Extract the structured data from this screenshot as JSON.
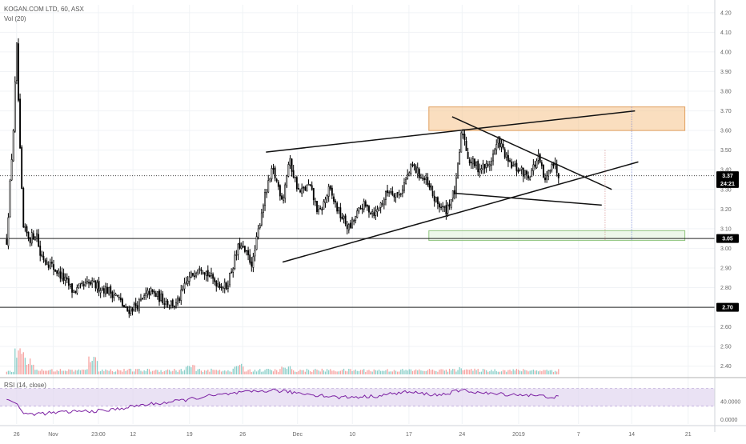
{
  "header": {
    "symbol_line": "KOGAN.COM LTD, 60, ASX",
    "volume_label": "Vol (20)",
    "rsi_label": "RSI (14, close)"
  },
  "price_axis": {
    "ticks": [
      "4.20",
      "4.10",
      "4.00",
      "3.90",
      "3.80",
      "3.70",
      "3.60",
      "3.50",
      "3.40",
      "3.30",
      "3.20",
      "3.10",
      "3.00",
      "2.90",
      "2.80",
      "2.70",
      "2.60",
      "2.50",
      "2.40"
    ],
    "tick_values": [
      4.2,
      4.1,
      4.0,
      3.9,
      3.8,
      3.7,
      3.6,
      3.5,
      3.4,
      3.3,
      3.2,
      3.1,
      3.0,
      2.9,
      2.8,
      2.7,
      2.6,
      2.5,
      2.4
    ],
    "range": [
      2.35,
      4.24
    ]
  },
  "rsi_axis": {
    "ticks": [
      "40.0000",
      "0.0000"
    ],
    "tick_values": [
      40,
      0
    ],
    "range": [
      -10,
      80
    ],
    "band": [
      30,
      70
    ]
  },
  "time_axis": {
    "labels": [
      "26",
      "Nov",
      "23:00",
      "12",
      "19",
      "26",
      "Dec",
      "10",
      "17",
      "24",
      "2019",
      "7",
      "14",
      "21"
    ],
    "positions": [
      0.03,
      0.14,
      0.276,
      0.38,
      0.55,
      0.71,
      0.875,
      1.04,
      1.21,
      1.37,
      1.54,
      1.72,
      1.88,
      2.05
    ]
  },
  "badges": [
    {
      "text": "3.37",
      "value": 3.37,
      "color": "#000000"
    },
    {
      "text": "24:21",
      "value": 3.33,
      "color": "#000000"
    },
    {
      "text": "3.05",
      "value": 3.05,
      "color": "#000000"
    },
    {
      "text": "2.70",
      "value": 2.7,
      "color": "#000000"
    }
  ],
  "horizontal_lines": [
    {
      "value": 3.05,
      "style": "solid"
    },
    {
      "value": 2.7,
      "style": "solid"
    },
    {
      "value": 3.37,
      "style": "dotted"
    }
  ],
  "zones": [
    {
      "x0": 1.27,
      "x1": 2.04,
      "y0": 3.6,
      "y1": 3.72,
      "fill": "#f5c28a",
      "stroke": "#e0a060"
    },
    {
      "x0": 1.27,
      "x1": 2.04,
      "y0": 3.04,
      "y1": 3.09,
      "fill": "#dff0d8",
      "stroke": "#8fc47e"
    }
  ],
  "trend_lines": [
    {
      "x1": 0.78,
      "y1": 3.49,
      "x2": 1.89,
      "y2": 3.7
    },
    {
      "x1": 0.83,
      "y1": 2.93,
      "x2": 1.9,
      "y2": 3.44
    },
    {
      "x1": 1.34,
      "y1": 3.67,
      "x2": 1.82,
      "y2": 3.3
    },
    {
      "x1": 1.35,
      "y1": 3.28,
      "x2": 1.79,
      "y2": 3.22
    }
  ],
  "accent_colors": {
    "up": "#26a69a",
    "down": "#ef5350",
    "rsi": "#7b1fa2",
    "rsi_band": "#e1d5f0"
  },
  "chart_data": {
    "type": "candlestick",
    "instrument": "KOGAN.COM LTD, 60, ASX",
    "x_unit": "weeks from first bar",
    "keypoints": [
      [
        0.0,
        3.04
      ],
      [
        0.02,
        3.6
      ],
      [
        0.03,
        4.04
      ],
      [
        0.04,
        3.5
      ],
      [
        0.05,
        3.1
      ],
      [
        0.07,
        3.05
      ],
      [
        0.09,
        3.08
      ],
      [
        0.1,
        2.97
      ],
      [
        0.13,
        2.92
      ],
      [
        0.17,
        2.85
      ],
      [
        0.2,
        2.78
      ],
      [
        0.25,
        2.82
      ],
      [
        0.3,
        2.79
      ],
      [
        0.33,
        2.76
      ],
      [
        0.36,
        2.68
      ],
      [
        0.4,
        2.72
      ],
      [
        0.43,
        2.78
      ],
      [
        0.47,
        2.74
      ],
      [
        0.51,
        2.71
      ],
      [
        0.54,
        2.82
      ],
      [
        0.58,
        2.92
      ],
      [
        0.62,
        2.84
      ],
      [
        0.66,
        2.8
      ],
      [
        0.7,
        3.02
      ],
      [
        0.74,
        2.92
      ],
      [
        0.77,
        3.22
      ],
      [
        0.8,
        3.4
      ],
      [
        0.83,
        3.25
      ],
      [
        0.85,
        3.45
      ],
      [
        0.88,
        3.28
      ],
      [
        0.91,
        3.32
      ],
      [
        0.94,
        3.17
      ],
      [
        0.97,
        3.3
      ],
      [
        1.0,
        3.18
      ],
      [
        1.03,
        3.1
      ],
      [
        1.07,
        3.22
      ],
      [
        1.11,
        3.18
      ],
      [
        1.15,
        3.3
      ],
      [
        1.18,
        3.27
      ],
      [
        1.22,
        3.42
      ],
      [
        1.26,
        3.34
      ],
      [
        1.29,
        3.24
      ],
      [
        1.32,
        3.19
      ],
      [
        1.35,
        3.3
      ],
      [
        1.37,
        3.61
      ],
      [
        1.39,
        3.45
      ],
      [
        1.42,
        3.41
      ],
      [
        1.45,
        3.42
      ],
      [
        1.48,
        3.55
      ],
      [
        1.51,
        3.43
      ],
      [
        1.54,
        3.4
      ],
      [
        1.57,
        3.37
      ],
      [
        1.6,
        3.46
      ],
      [
        1.62,
        3.33
      ],
      [
        1.64,
        3.45
      ],
      [
        1.66,
        3.38
      ]
    ],
    "volume_spikes": [
      [
        0.04,
        2.8
      ],
      [
        0.07,
        1.6
      ],
      [
        0.26,
        1.9
      ],
      [
        0.55,
        0.9
      ],
      [
        0.7,
        1.0
      ],
      [
        0.84,
        0.8
      ],
      [
        1.37,
        0.7
      ]
    ],
    "rsi_keypoints": [
      [
        0.0,
        45
      ],
      [
        0.03,
        38
      ],
      [
        0.05,
        12
      ],
      [
        0.12,
        14
      ],
      [
        0.2,
        18
      ],
      [
        0.3,
        20
      ],
      [
        0.4,
        32
      ],
      [
        0.5,
        40
      ],
      [
        0.6,
        52
      ],
      [
        0.7,
        60
      ],
      [
        0.8,
        66
      ],
      [
        0.9,
        58
      ],
      [
        1.0,
        50
      ],
      [
        1.1,
        52
      ],
      [
        1.2,
        62
      ],
      [
        1.3,
        55
      ],
      [
        1.37,
        66
      ],
      [
        1.45,
        58
      ],
      [
        1.55,
        56
      ],
      [
        1.66,
        50
      ]
    ],
    "xlim": [
      -0.02,
      2.13
    ],
    "ylim": [
      2.35,
      4.24
    ]
  }
}
